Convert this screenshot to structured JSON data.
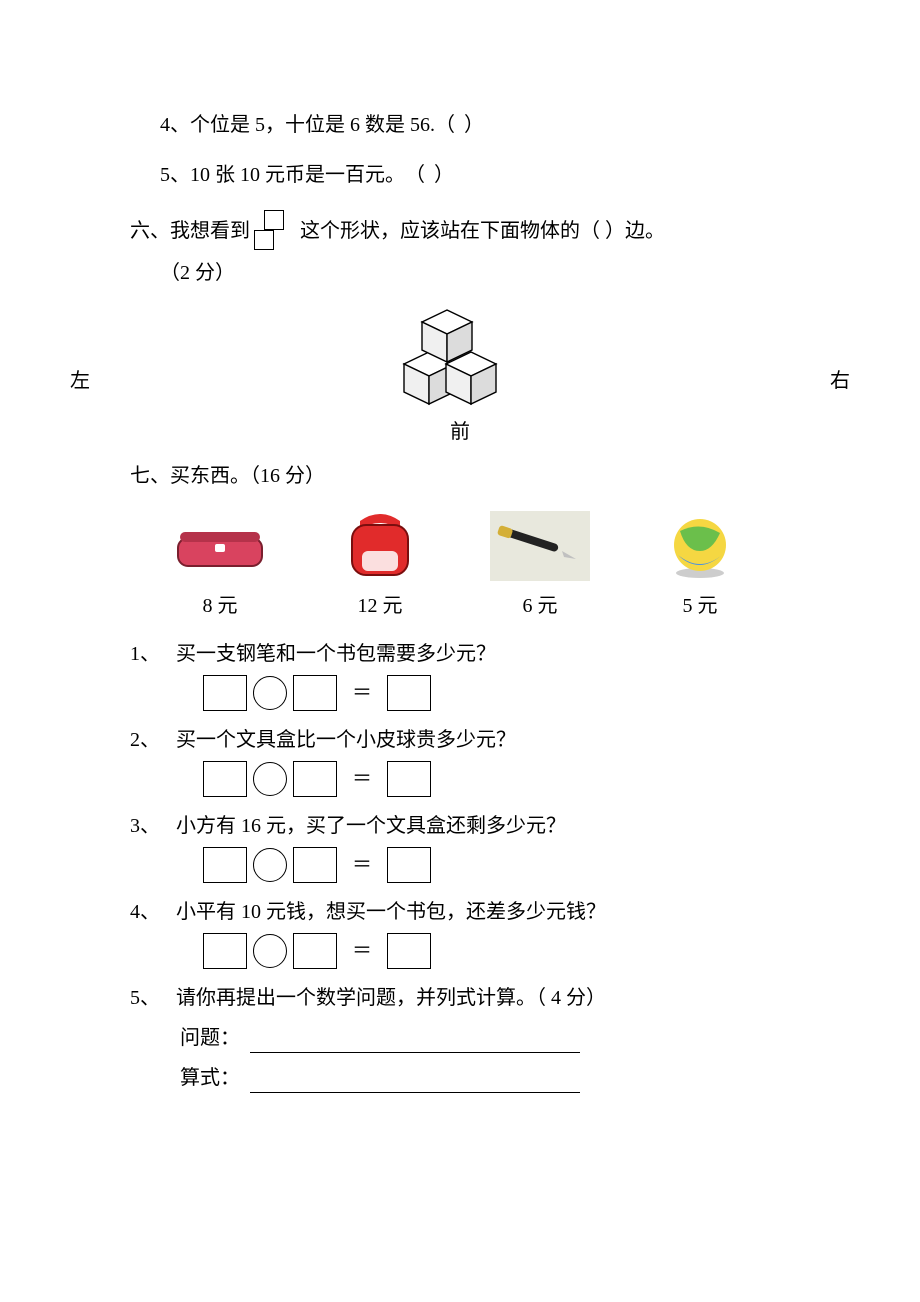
{
  "q4": {
    "num": "4、",
    "text_a": "个位是 5，十位是 6 数是 56.",
    "paren": "（          ）"
  },
  "q5": {
    "num": "5、",
    "text_a": "10 张 10 元币是一百元。",
    "paren": "（          ）"
  },
  "q6": {
    "num": "六、",
    "text_a": "我想看到",
    "text_b": "这个形状，应该站在下面物体的（      ）边。",
    "points": "（2 分）",
    "left": "左",
    "right": "右",
    "front": "前"
  },
  "q7": {
    "num": "七、",
    "title": "买东西。（16 分）",
    "items": [
      {
        "name": "pencil-case",
        "price": "8 元"
      },
      {
        "name": "backpack",
        "price": "12 元"
      },
      {
        "name": "pen",
        "price": "6 元"
      },
      {
        "name": "ball",
        "price": "5 元"
      }
    ],
    "sub": [
      {
        "n": "1、",
        "q": "买一支钢笔和一个书包需要多少元？"
      },
      {
        "n": "2、",
        "q": "买一个文具盒比一个小皮球贵多少元？"
      },
      {
        "n": "3、",
        "q": "小方有 16 元，买了一个文具盒还剩多少元？"
      },
      {
        "n": "4、",
        "q": "小平有 10 元钱，想买一个书包，还差多少元钱？"
      },
      {
        "n": "5、",
        "q": "请你再提出一个数学问题，并列式计算。（ 4 分）"
      }
    ],
    "eq": "＝",
    "label_q": "问题：",
    "label_e": "算式："
  },
  "svg": {
    "pencil_case": {
      "body_fill": "#d9435f",
      "body_stroke": "#7a1f2e",
      "lid_fill": "#b5324a",
      "clasp": "#ffffff"
    },
    "backpack": {
      "fill": "#e12b2b",
      "stroke": "#7a0e0e",
      "pocket": "#ffffff"
    },
    "pen": {
      "body": "#222222",
      "cap": "#d4af37",
      "nib": "#c0c0c0",
      "bg": "#e8e8dd"
    },
    "ball": {
      "c1": "#f5d742",
      "c2": "#6bbf4b",
      "c3": "#4a90e2",
      "shadow": "#707070"
    },
    "cube": {
      "top": "#ffffff",
      "left": "#f0f0f0",
      "right": "#dcdcdc",
      "stroke": "#000000"
    }
  }
}
